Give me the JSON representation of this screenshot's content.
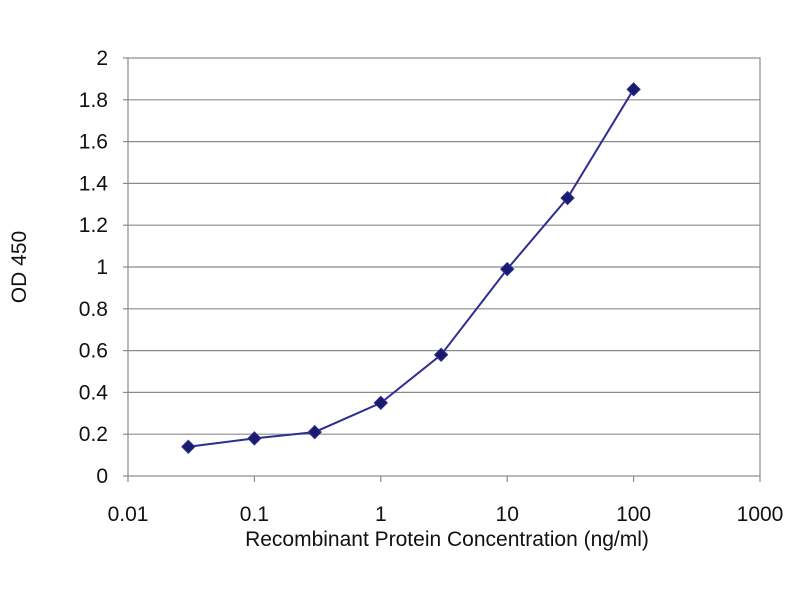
{
  "chart_data": {
    "type": "line",
    "title": "",
    "xlabel": "Recombinant Protein Concentration (ng/ml)",
    "ylabel": "OD 450",
    "xscale": "log",
    "xlim": [
      0.01,
      1000
    ],
    "ylim": [
      0,
      2
    ],
    "x_ticks": [
      "0.01",
      "0.1",
      "1",
      "10",
      "100",
      "1000"
    ],
    "y_ticks": [
      "0",
      "0.2",
      "0.4",
      "0.6",
      "0.8",
      "1",
      "1.2",
      "1.4",
      "1.6",
      "1.8",
      "2"
    ],
    "grid": "horizontal",
    "legend": "none",
    "series": [
      {
        "marker": "diamond",
        "color": "#2e2e8f",
        "x": [
          0.03,
          0.1,
          0.3,
          1,
          3,
          10,
          30,
          100
        ],
        "y": [
          0.14,
          0.18,
          0.21,
          0.35,
          0.58,
          0.99,
          1.33,
          1.85
        ]
      }
    ]
  }
}
